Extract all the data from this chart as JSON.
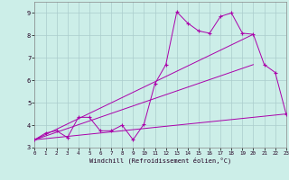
{
  "xlabel": "Windchill (Refroidissement éolien,°C)",
  "bg_color": "#cceee8",
  "grid_color": "#aacccc",
  "line_color": "#aa00aa",
  "xlim": [
    0,
    23
  ],
  "ylim": [
    3,
    9.5
  ],
  "xticks": [
    0,
    1,
    2,
    3,
    4,
    5,
    6,
    7,
    8,
    9,
    10,
    11,
    12,
    13,
    14,
    15,
    16,
    17,
    18,
    19,
    20,
    21,
    22,
    23
  ],
  "yticks": [
    3,
    4,
    5,
    6,
    7,
    8,
    9
  ],
  "series_zigzag": {
    "x": [
      0,
      1,
      2,
      3,
      4,
      5,
      6,
      7,
      8,
      9,
      10,
      11,
      12,
      13,
      14,
      15,
      16,
      17,
      18,
      19,
      20,
      21,
      22,
      23
    ],
    "y": [
      3.35,
      3.65,
      3.75,
      3.45,
      4.35,
      4.35,
      3.75,
      3.75,
      4.0,
      3.35,
      4.05,
      5.85,
      6.7,
      9.05,
      8.55,
      8.2,
      8.1,
      8.85,
      9.0,
      8.1,
      8.05,
      6.7,
      6.35,
      4.5
    ]
  },
  "series_flat": {
    "x": [
      0,
      23
    ],
    "y": [
      3.35,
      4.5
    ]
  },
  "series_diag1": {
    "x": [
      0,
      20
    ],
    "y": [
      3.35,
      8.05
    ]
  },
  "series_diag2": {
    "x": [
      0,
      20
    ],
    "y": [
      3.35,
      6.7
    ]
  }
}
